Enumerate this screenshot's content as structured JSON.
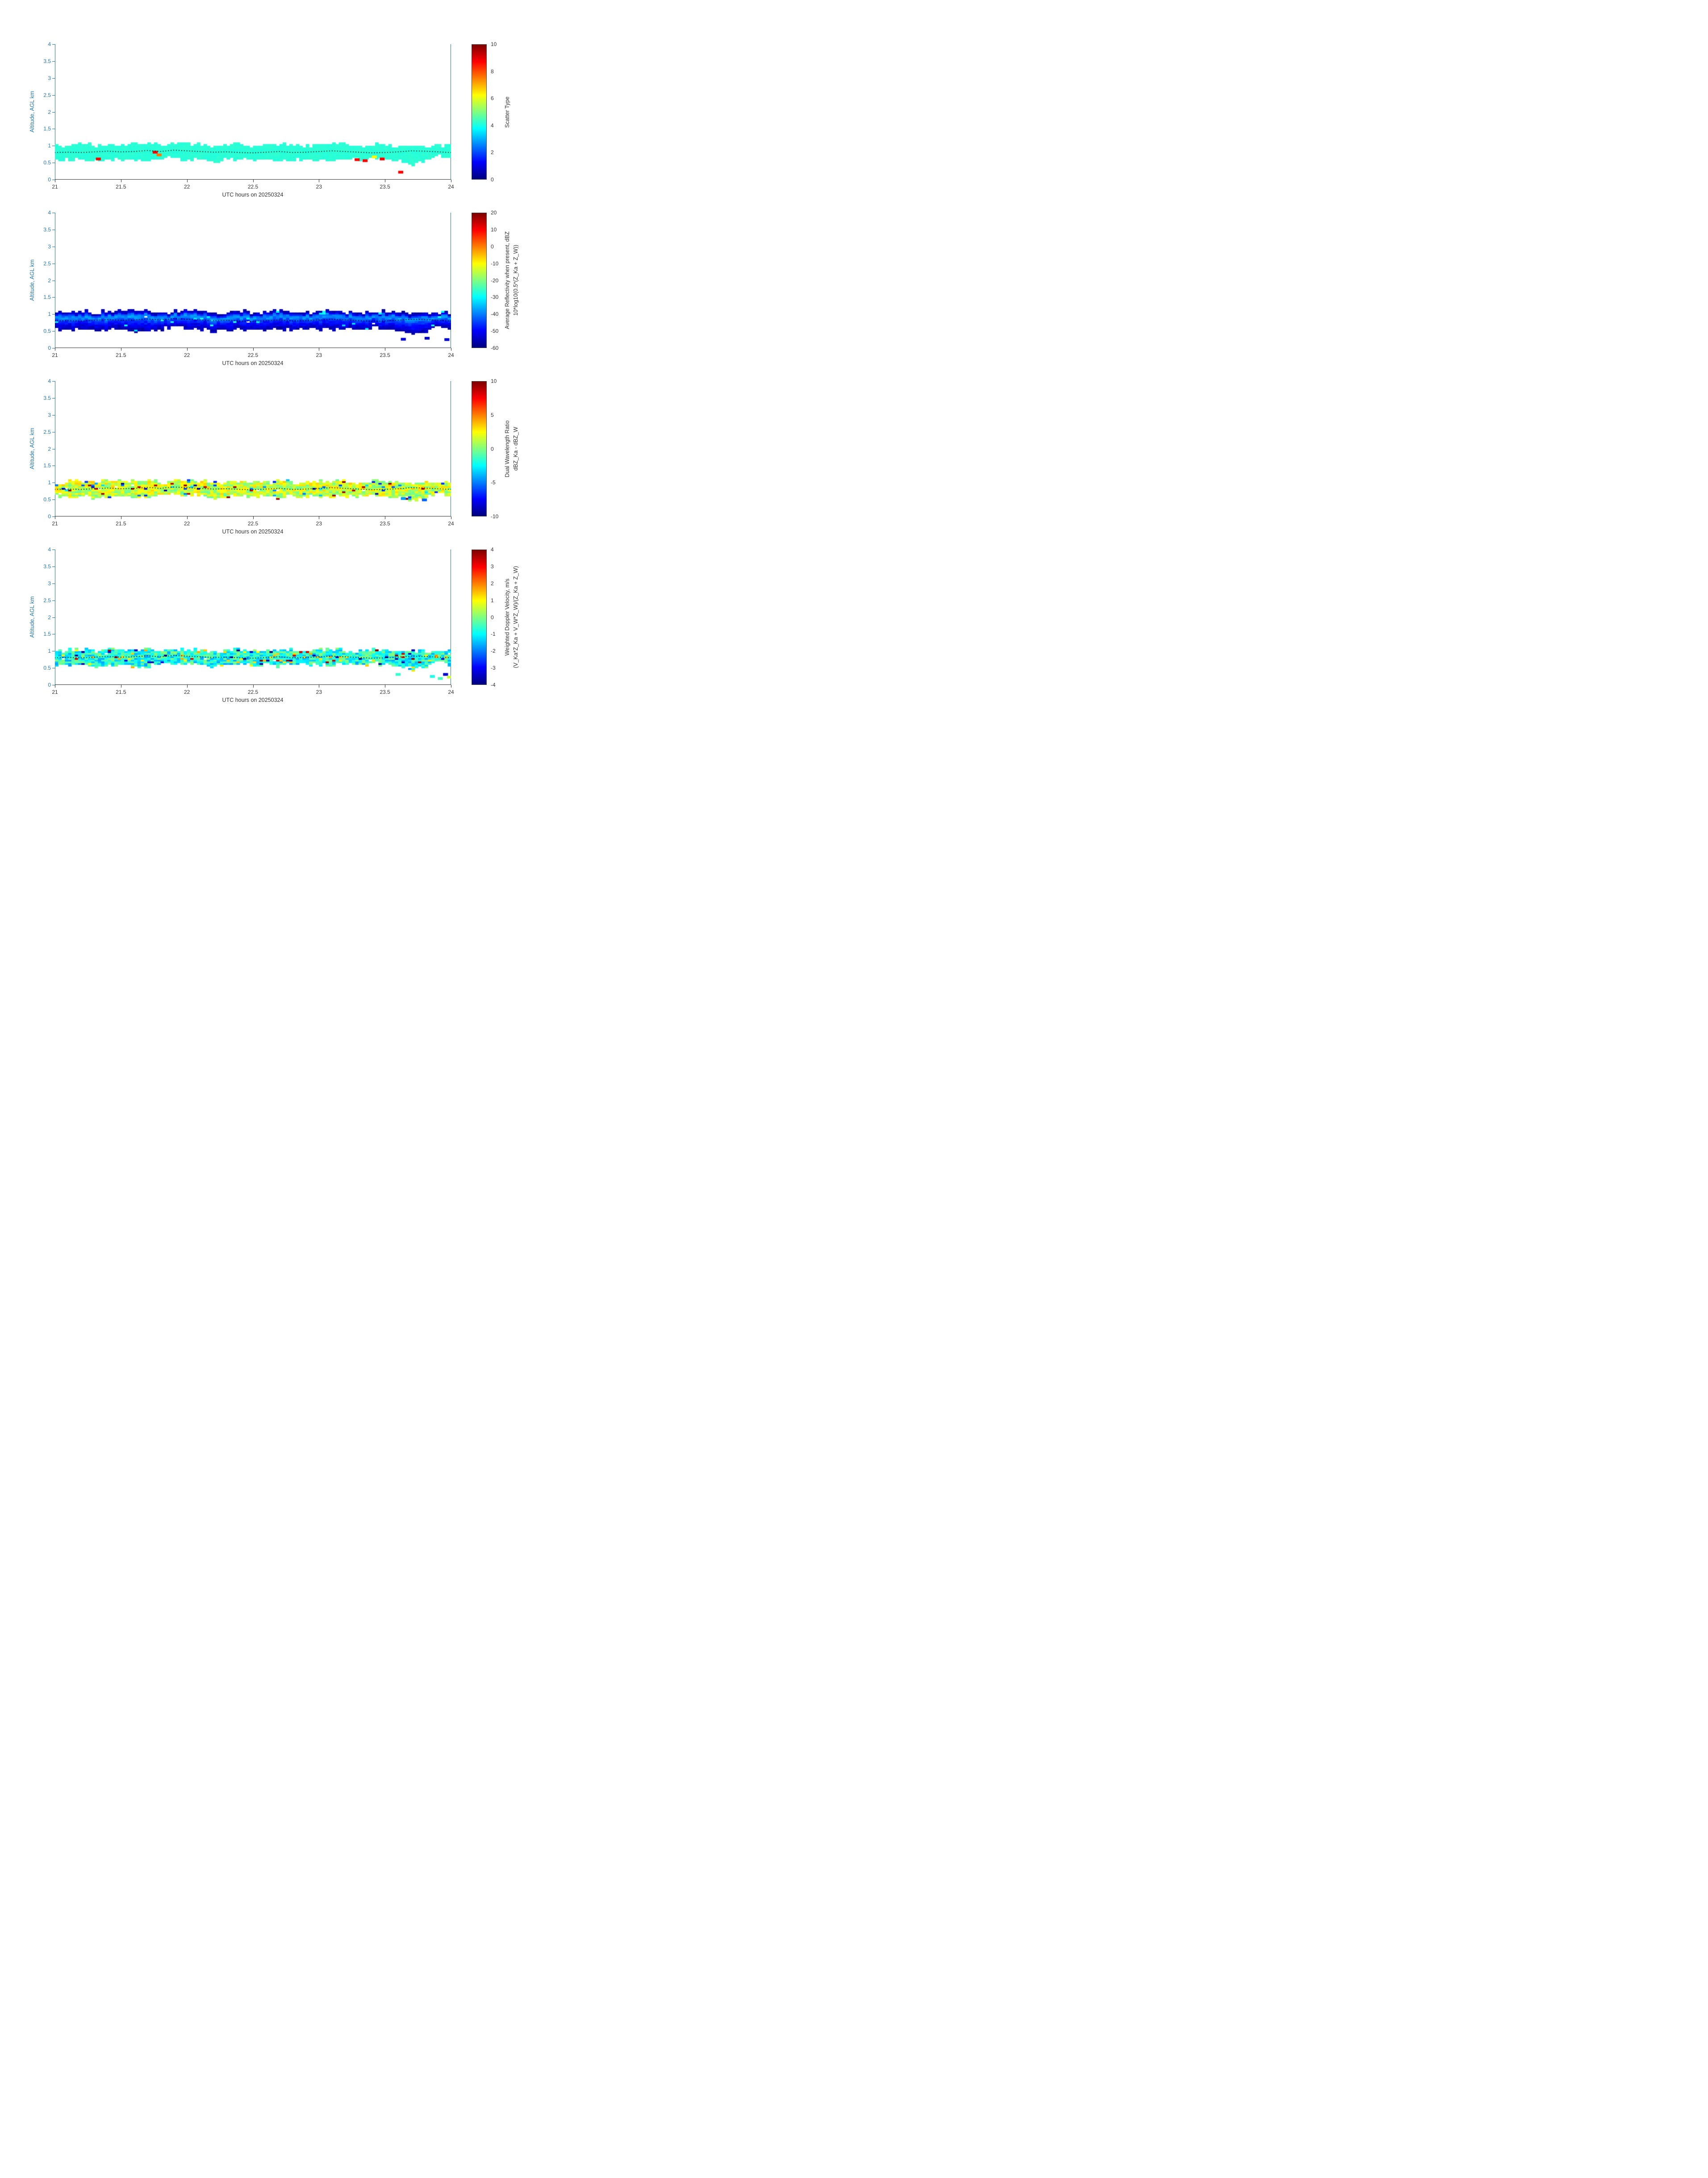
{
  "colors": {
    "axis": "#2478b4",
    "x_axis_text": "#333333",
    "mean_line": "#000000",
    "background": "#ffffff",
    "colormap": "jet"
  },
  "chart_data": [
    {
      "type": "heatmap",
      "xlabel": "UTC hours on 20250324",
      "ylabel": "Altitude, AGL km",
      "xlim": [
        21,
        24
      ],
      "ylim": [
        0,
        4
      ],
      "xticks": [
        21,
        21.5,
        22,
        22.5,
        23,
        23.5,
        24
      ],
      "yticks": [
        0,
        0.5,
        1,
        1.5,
        2,
        2.5,
        3,
        3.5,
        4
      ],
      "colorbar": {
        "label": "Scatter Type",
        "sublabel": "",
        "min": 0,
        "max": 10,
        "ticks": [
          0,
          2,
          4,
          6,
          8,
          10
        ]
      },
      "band": {
        "x0": 21.0,
        "dx": 0.1,
        "top": [
          0.97,
          1.0,
          1.03,
          0.99,
          1.04,
          1.01,
          1.03,
          1.05,
          0.99,
          1.01,
          1.05,
          1.02,
          0.97,
          1.0,
          1.03,
          0.98,
          1.0,
          1.04,
          1.0,
          0.98,
          1.02,
          1.05,
          1.0,
          0.98,
          1.0,
          1.02,
          0.98,
          0.96,
          1.0,
          0.96,
          1.0
        ],
        "bottom": [
          0.62,
          0.57,
          0.6,
          0.55,
          0.58,
          0.62,
          0.55,
          0.57,
          0.6,
          0.68,
          0.58,
          0.6,
          0.55,
          0.58,
          0.62,
          0.57,
          0.6,
          0.55,
          0.62,
          0.58,
          0.6,
          0.55,
          0.62,
          0.58,
          0.65,
          0.6,
          0.55,
          0.45,
          0.5,
          0.72,
          0.58
        ],
        "value_by_depth": [
          [
            0,
            4.15
          ],
          [
            1,
            4.15
          ]
        ],
        "noise": 0.07,
        "gap_prob": 0.004,
        "outliers": [],
        "extra_cells": [
          {
            "x": 21.31,
            "y": 0.6,
            "v": 8.8
          },
          {
            "x": 21.74,
            "y": 0.8,
            "v": 8.8
          },
          {
            "x": 21.77,
            "y": 0.72,
            "v": 7.6
          },
          {
            "x": 23.27,
            "y": 0.58,
            "v": 8.8
          },
          {
            "x": 23.33,
            "y": 0.55,
            "v": 8.8
          },
          {
            "x": 23.4,
            "y": 0.66,
            "v": 6.3
          },
          {
            "x": 23.46,
            "y": 0.6,
            "v": 8.8
          },
          {
            "x": 23.6,
            "y": 0.21,
            "v": 8.8
          }
        ]
      },
      "mean_line": {
        "x0": 21.0,
        "dx": 0.1,
        "y": [
          0.8,
          0.81,
          0.8,
          0.82,
          0.84,
          0.82,
          0.83,
          0.86,
          0.83,
          0.87,
          0.85,
          0.83,
          0.81,
          0.82,
          0.8,
          0.79,
          0.81,
          0.83,
          0.8,
          0.81,
          0.83,
          0.85,
          0.83,
          0.81,
          0.79,
          0.8,
          0.82,
          0.85,
          0.84,
          0.82,
          0.8
        ]
      }
    },
    {
      "type": "heatmap",
      "xlabel": "UTC hours on 20250324",
      "ylabel": "Altitude, AGL km",
      "xlim": [
        21,
        24
      ],
      "ylim": [
        0,
        4
      ],
      "xticks": [
        21,
        21.5,
        22,
        22.5,
        23,
        23.5,
        24
      ],
      "yticks": [
        0,
        0.5,
        1,
        1.5,
        2,
        2.5,
        3,
        3.5,
        4
      ],
      "colorbar": {
        "label": "Average Reflectivity when present, dBZ",
        "sublabel": "10*log10(0.5*(Z_Ka + Z_W))",
        "min": -60,
        "max": 20,
        "ticks": [
          -60,
          -50,
          -40,
          -30,
          -20,
          -10,
          0,
          10,
          20
        ]
      },
      "band": {
        "x0": 21.0,
        "dx": 0.1,
        "top": [
          1.01,
          1.04,
          1.07,
          1.03,
          1.08,
          1.05,
          1.07,
          1.09,
          1.03,
          1.05,
          1.09,
          1.06,
          1.01,
          1.04,
          1.07,
          1.02,
          1.04,
          1.08,
          1.04,
          1.02,
          1.06,
          1.09,
          1.04,
          1.02,
          1.04,
          1.06,
          1.02,
          1.0,
          1.04,
          1.0,
          1.04
        ],
        "bottom": [
          0.58,
          0.53,
          0.56,
          0.51,
          0.54,
          0.58,
          0.51,
          0.53,
          0.56,
          0.64,
          0.54,
          0.56,
          0.51,
          0.54,
          0.58,
          0.53,
          0.56,
          0.51,
          0.58,
          0.54,
          0.56,
          0.51,
          0.58,
          0.54,
          0.61,
          0.56,
          0.51,
          0.41,
          0.46,
          0.68,
          0.54
        ],
        "value_by_depth": [
          [
            0,
            -56
          ],
          [
            0.07,
            -53
          ],
          [
            0.18,
            -41
          ],
          [
            0.3,
            -38
          ],
          [
            0.45,
            -45
          ],
          [
            0.65,
            -50
          ],
          [
            0.85,
            -54
          ],
          [
            1,
            -57
          ]
        ],
        "noise": 2.5,
        "gap_prob": 0.003,
        "outliers": [
          {
            "v": -30,
            "prob": 0.02,
            "jitter": 3
          }
        ],
        "extra_cells": [
          {
            "x": 23.62,
            "y": 0.25,
            "v": -53
          },
          {
            "x": 23.8,
            "y": 0.28,
            "v": -55
          },
          {
            "x": 23.95,
            "y": 0.24,
            "v": -53
          }
        ]
      },
      "mean_line": {
        "x0": 21.0,
        "dx": 0.1,
        "y": [
          0.8,
          0.81,
          0.8,
          0.82,
          0.84,
          0.82,
          0.83,
          0.86,
          0.83,
          0.87,
          0.85,
          0.83,
          0.81,
          0.82,
          0.8,
          0.79,
          0.81,
          0.83,
          0.8,
          0.81,
          0.83,
          0.85,
          0.83,
          0.81,
          0.79,
          0.8,
          0.82,
          0.85,
          0.84,
          0.82,
          0.8
        ]
      }
    },
    {
      "type": "heatmap",
      "xlabel": "UTC hours on 20250324",
      "ylabel": "Altitude, AGL km",
      "xlim": [
        21,
        24
      ],
      "ylim": [
        0,
        4
      ],
      "xticks": [
        21,
        21.5,
        22,
        22.5,
        23,
        23.5,
        24
      ],
      "yticks": [
        0,
        0.5,
        1,
        1.5,
        2,
        2.5,
        3,
        3.5,
        4
      ],
      "colorbar": {
        "label": "Dual Wavelength Ratio",
        "sublabel": "dBZ_Ka - dBZ_W",
        "min": -10,
        "max": 10,
        "ticks": [
          -10,
          -5,
          0,
          5,
          10
        ]
      },
      "band": {
        "x0": 21.0,
        "dx": 0.1,
        "top": [
          0.97,
          1.0,
          1.03,
          0.99,
          1.04,
          1.01,
          1.03,
          1.05,
          0.99,
          1.01,
          1.05,
          1.02,
          0.97,
          1.0,
          1.03,
          0.98,
          1.0,
          1.04,
          1.0,
          0.98,
          1.02,
          1.05,
          1.0,
          0.98,
          1.0,
          1.02,
          0.98,
          0.96,
          1.0,
          0.96,
          1.0
        ],
        "bottom": [
          0.62,
          0.57,
          0.6,
          0.55,
          0.58,
          0.62,
          0.55,
          0.57,
          0.6,
          0.68,
          0.58,
          0.6,
          0.55,
          0.58,
          0.62,
          0.57,
          0.6,
          0.55,
          0.62,
          0.58,
          0.6,
          0.55,
          0.62,
          0.58,
          0.65,
          0.6,
          0.55,
          0.45,
          0.5,
          0.72,
          0.58
        ],
        "value_by_depth": [
          [
            0,
            1.6
          ],
          [
            1,
            1.2
          ]
        ],
        "noise": 2.0,
        "gap_prob": 0.01,
        "outliers": [
          {
            "v": 9.2,
            "prob": 0.02,
            "jitter": 0.8
          },
          {
            "v": -5.0,
            "prob": 0.05,
            "jitter": 2.0
          },
          {
            "v": -9.0,
            "prob": 0.012,
            "jitter": 0.8
          }
        ],
        "extra_cells": [
          {
            "x": 23.62,
            "y": 0.52,
            "v": -4.5
          },
          {
            "x": 23.78,
            "y": 0.48,
            "v": -5.5
          }
        ]
      },
      "mean_line": {
        "x0": 21.0,
        "dx": 0.1,
        "y": [
          0.8,
          0.81,
          0.8,
          0.82,
          0.84,
          0.82,
          0.83,
          0.86,
          0.83,
          0.87,
          0.85,
          0.83,
          0.81,
          0.82,
          0.8,
          0.79,
          0.81,
          0.83,
          0.8,
          0.81,
          0.83,
          0.85,
          0.83,
          0.81,
          0.79,
          0.8,
          0.82,
          0.85,
          0.84,
          0.82,
          0.8
        ]
      }
    },
    {
      "type": "heatmap",
      "xlabel": "UTC hours on 20250324",
      "ylabel": "Altitude, AGL km",
      "xlim": [
        21,
        24
      ],
      "ylim": [
        0,
        4
      ],
      "xticks": [
        21,
        21.5,
        22,
        22.5,
        23,
        23.5,
        24
      ],
      "yticks": [
        0,
        0.5,
        1,
        1.5,
        2,
        2.5,
        3,
        3.5,
        4
      ],
      "colorbar": {
        "label": "Weighted Doppler Velocity, m/s",
        "sublabel": "(V_Ka*Z_Ka + V_W*Z_W)/(Z_Ka + Z_W)",
        "min": -4,
        "max": 4,
        "ticks": [
          -4,
          -3,
          -2,
          -1,
          0,
          1,
          2,
          3,
          4
        ]
      },
      "band": {
        "x0": 21.0,
        "dx": 0.1,
        "top": [
          0.97,
          1.0,
          1.03,
          0.99,
          1.04,
          1.01,
          1.03,
          1.05,
          0.99,
          1.01,
          1.05,
          1.02,
          0.97,
          1.0,
          1.03,
          0.98,
          1.0,
          1.04,
          1.0,
          0.98,
          1.02,
          1.05,
          1.0,
          0.98,
          1.0,
          1.02,
          0.98,
          0.96,
          1.0,
          0.96,
          1.0
        ],
        "bottom": [
          0.62,
          0.57,
          0.6,
          0.55,
          0.58,
          0.62,
          0.55,
          0.57,
          0.6,
          0.68,
          0.58,
          0.6,
          0.55,
          0.58,
          0.62,
          0.57,
          0.6,
          0.55,
          0.62,
          0.58,
          0.6,
          0.55,
          0.62,
          0.58,
          0.65,
          0.6,
          0.55,
          0.45,
          0.5,
          0.72,
          0.58
        ],
        "value_by_depth": [
          [
            0,
            -0.7
          ],
          [
            1,
            -0.9
          ]
        ],
        "noise": 0.9,
        "gap_prob": 0.008,
        "outliers": [
          {
            "v": 3.6,
            "prob": 0.018,
            "jitter": 0.4
          },
          {
            "v": -3.6,
            "prob": 0.022,
            "jitter": 0.4
          },
          {
            "v": 1.4,
            "prob": 0.04,
            "jitter": 0.5
          }
        ],
        "extra_cells": [
          {
            "x": 23.58,
            "y": 0.3,
            "v": -0.6
          },
          {
            "x": 23.84,
            "y": 0.24,
            "v": -0.8
          },
          {
            "x": 23.9,
            "y": 0.18,
            "v": -0.5
          },
          {
            "x": 23.94,
            "y": 0.3,
            "v": -3.4
          },
          {
            "x": 23.97,
            "y": 0.22,
            "v": 0.6
          }
        ]
      },
      "mean_line": {
        "x0": 21.0,
        "dx": 0.1,
        "y": [
          0.8,
          0.81,
          0.8,
          0.82,
          0.84,
          0.82,
          0.83,
          0.86,
          0.83,
          0.87,
          0.85,
          0.83,
          0.81,
          0.82,
          0.8,
          0.79,
          0.81,
          0.83,
          0.8,
          0.81,
          0.83,
          0.85,
          0.83,
          0.81,
          0.79,
          0.8,
          0.82,
          0.85,
          0.84,
          0.82,
          0.8
        ]
      }
    }
  ]
}
